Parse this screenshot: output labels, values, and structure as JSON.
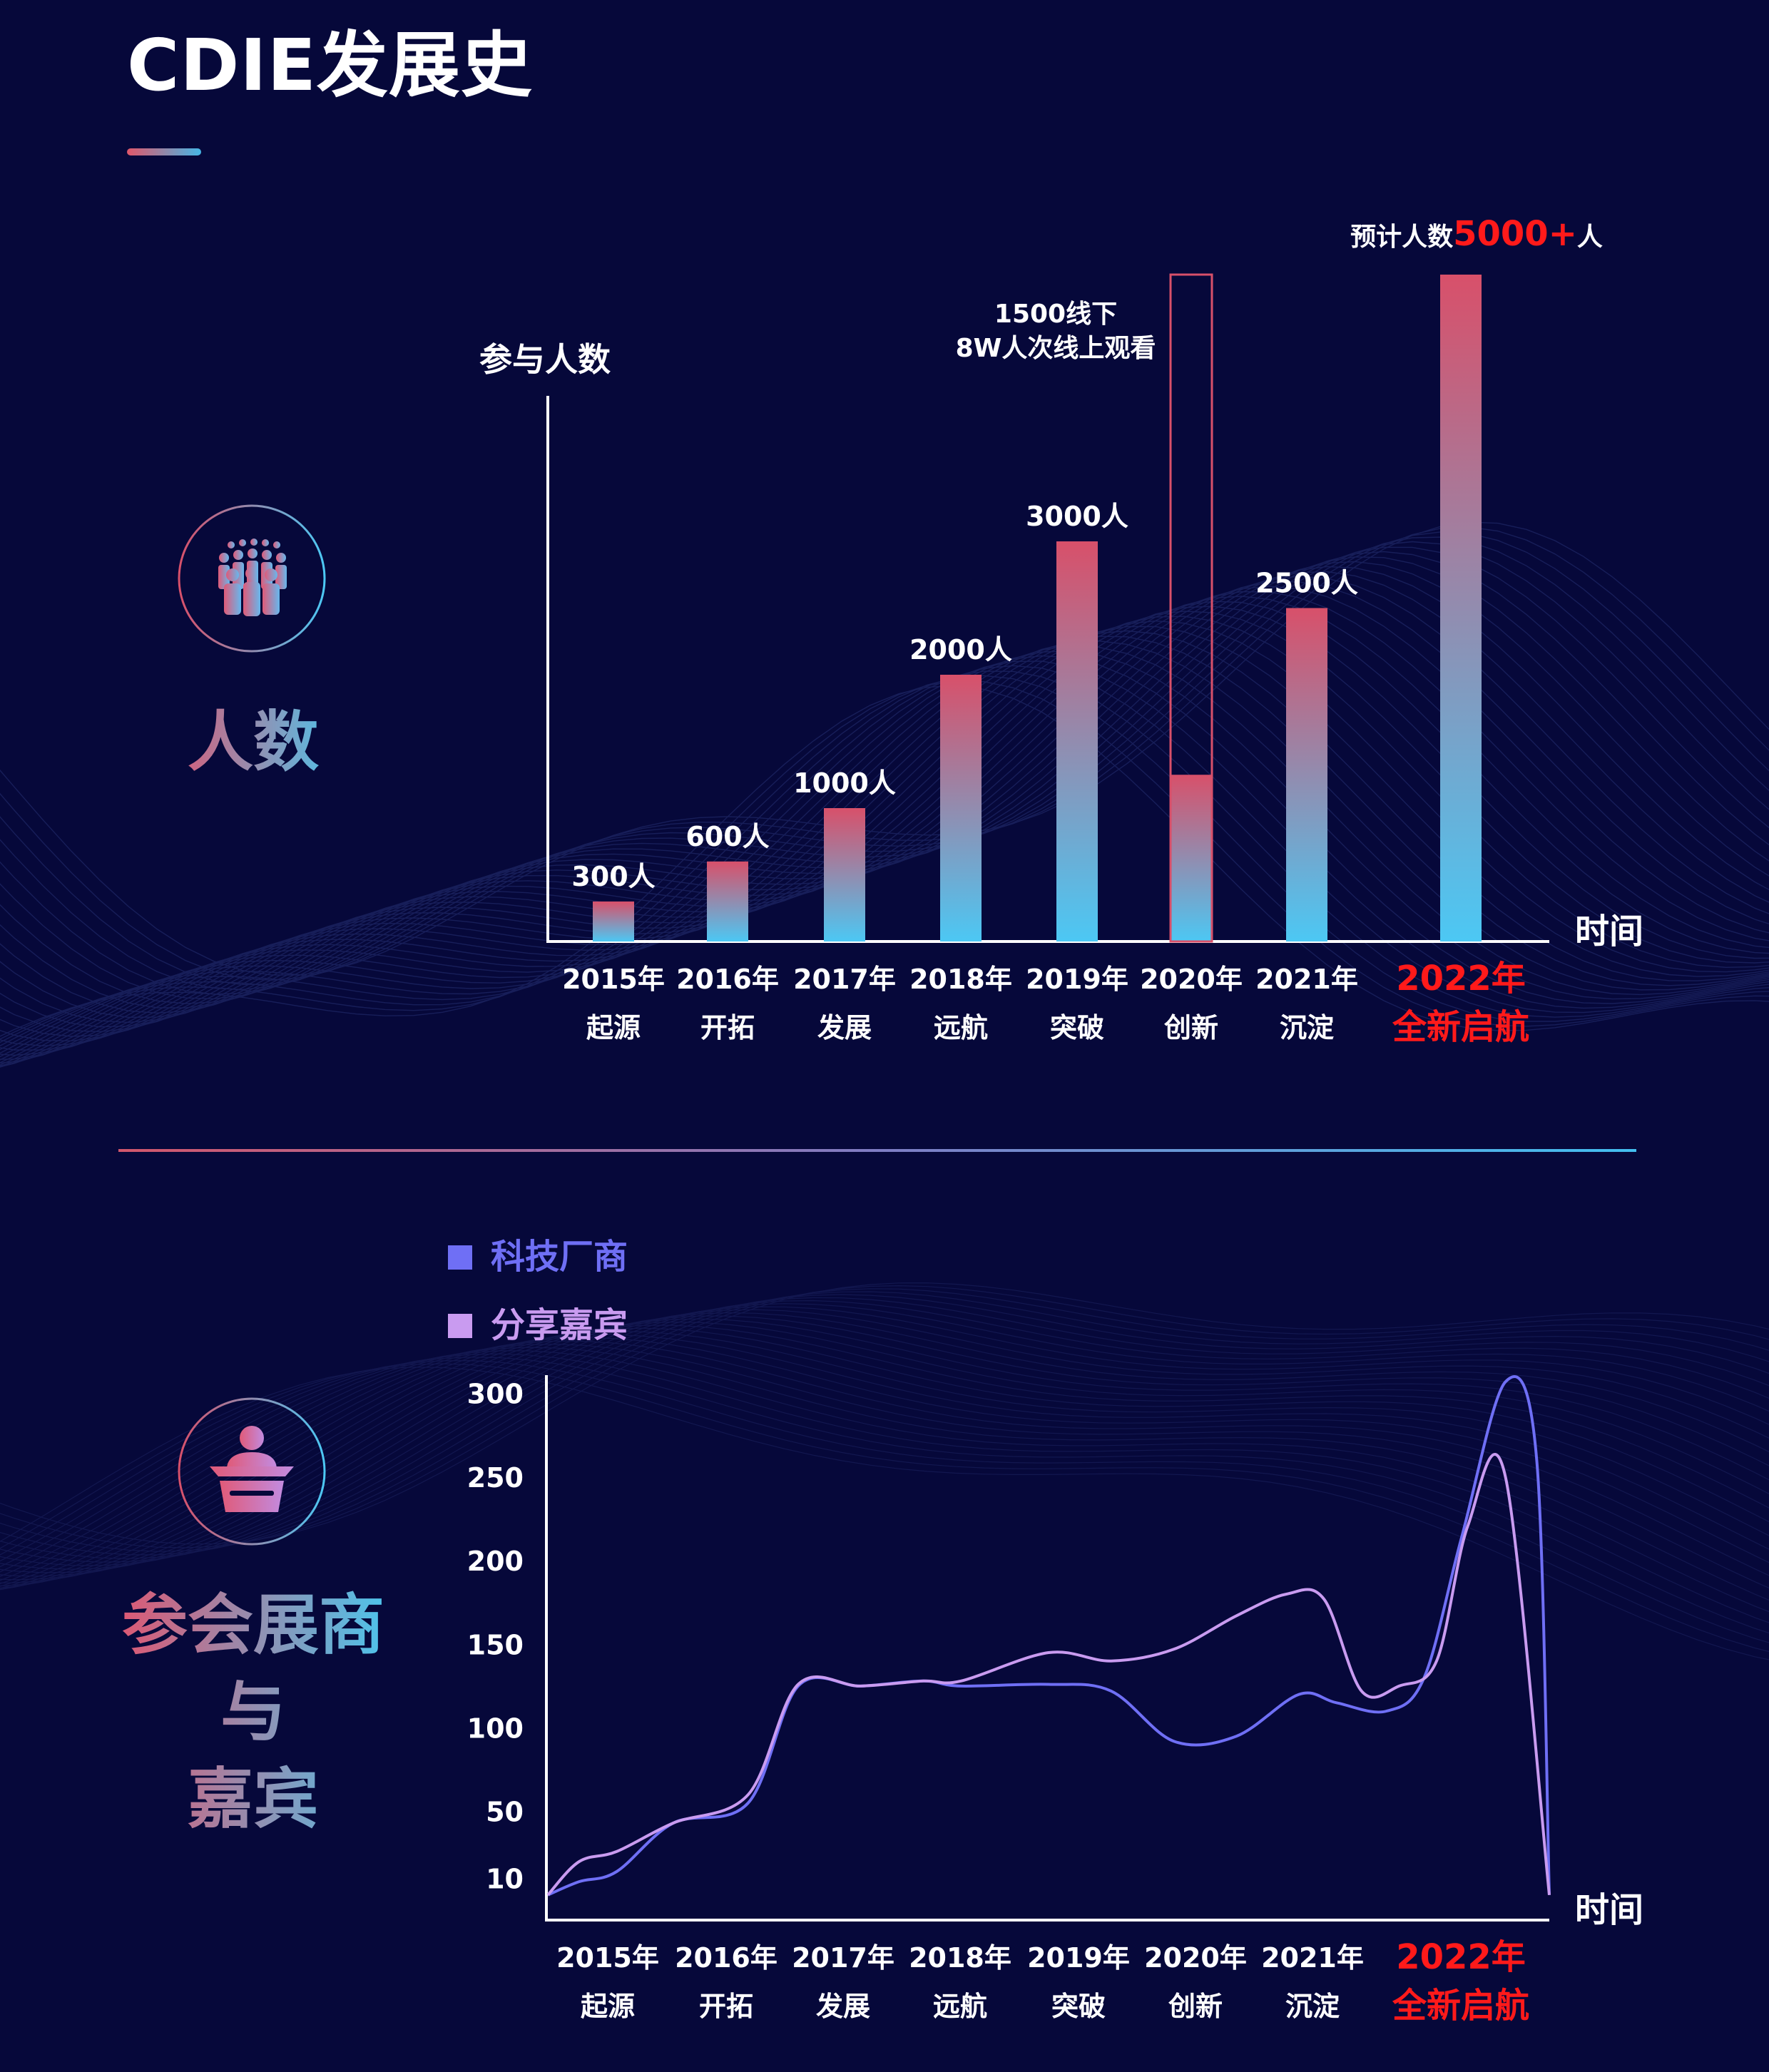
{
  "page": {
    "title": "CDIE发展史"
  },
  "section1": {
    "label": "人数",
    "icon": "crowd-icon"
  },
  "section2": {
    "label_lines": [
      "参会展商",
      "与",
      "嘉宾"
    ],
    "icon": "speaker-podium-icon",
    "legend": [
      {
        "name": "科技厂商",
        "color": "#6f6ff5"
      },
      {
        "name": "分享嘉宾",
        "color": "#c99bf0"
      }
    ]
  },
  "colors": {
    "background": "#06083a",
    "bar_top": "#d8506a",
    "bar_bottom": "#4cc8f4",
    "highlight": "#ff1a1a"
  },
  "chart_data": [
    {
      "type": "bar",
      "ylabel": "参与人数",
      "xlabel": "时间",
      "categories": [
        "2015年",
        "2016年",
        "2017年",
        "2018年",
        "2019年",
        "2020年",
        "2021年",
        "2022年"
      ],
      "subcategories": [
        "起源",
        "开拓",
        "发展",
        "远航",
        "突破",
        "创新",
        "沉淀",
        "全新启航"
      ],
      "values": [
        300,
        600,
        1000,
        2000,
        3000,
        1250,
        2500,
        5000
      ],
      "data_labels": [
        "300人",
        "600人",
        "1000人",
        "2000人",
        "3000人",
        "",
        "2500人",
        ""
      ],
      "highlight_index": 7,
      "outline_value_2020": 5000,
      "annotation_2020": [
        "1500线下",
        "8W人次线上观看"
      ],
      "annotation_2022": {
        "prefix": "预计人数",
        "number": "5000+",
        "suffix": "人"
      }
    },
    {
      "type": "line",
      "xlabel": "时间",
      "categories": [
        "2015年",
        "2016年",
        "2017年",
        "2018年",
        "2019年",
        "2020年",
        "2021年",
        "2022年"
      ],
      "subcategories": [
        "起源",
        "开拓",
        "发展",
        "远航",
        "突破",
        "创新",
        "沉淀",
        "全新启航"
      ],
      "highlight_index": 7,
      "y_ticks": [
        "300",
        "250",
        "200",
        "150",
        "100",
        "50",
        "10"
      ],
      "y_tick_values": [
        300,
        250,
        200,
        150,
        100,
        50,
        10
      ],
      "ylim": [
        -15,
        305
      ],
      "series": [
        {
          "name": "科技厂商",
          "color": "#6f6ff5",
          "points": [
            [
              0,
              0
            ],
            [
              0.25,
              8
            ],
            [
              0.55,
              14
            ],
            [
              1,
              43
            ],
            [
              1.6,
              55
            ],
            [
              2,
              125
            ],
            [
              2.5,
              125
            ],
            [
              3,
              128
            ],
            [
              3.3,
              125
            ],
            [
              4,
              126
            ],
            [
              4.5,
              122
            ],
            [
              5,
              92
            ],
            [
              5.5,
              95
            ],
            [
              6,
              120
            ],
            [
              6.3,
              115
            ],
            [
              6.7,
              110
            ],
            [
              7,
              130
            ],
            [
              7.3,
              214
            ],
            [
              7.65,
              307
            ],
            [
              7.9,
              260
            ],
            [
              8,
              0
            ]
          ]
        },
        {
          "name": "分享嘉宾",
          "color": "#c99bf0",
          "points": [
            [
              0,
              0
            ],
            [
              0.25,
              20
            ],
            [
              0.55,
              26
            ],
            [
              1,
              43
            ],
            [
              1.6,
              60
            ],
            [
              2,
              126
            ],
            [
              2.5,
              125
            ],
            [
              3,
              128
            ],
            [
              3.3,
              128
            ],
            [
              4,
              145
            ],
            [
              4.5,
              140
            ],
            [
              5,
              147
            ],
            [
              5.5,
              167
            ],
            [
              5.9,
              180
            ],
            [
              6.2,
              177
            ],
            [
              6.5,
              122
            ],
            [
              6.8,
              125
            ],
            [
              7.1,
              140
            ],
            [
              7.35,
              221
            ],
            [
              7.65,
              250
            ],
            [
              8,
              0
            ]
          ]
        }
      ]
    }
  ]
}
